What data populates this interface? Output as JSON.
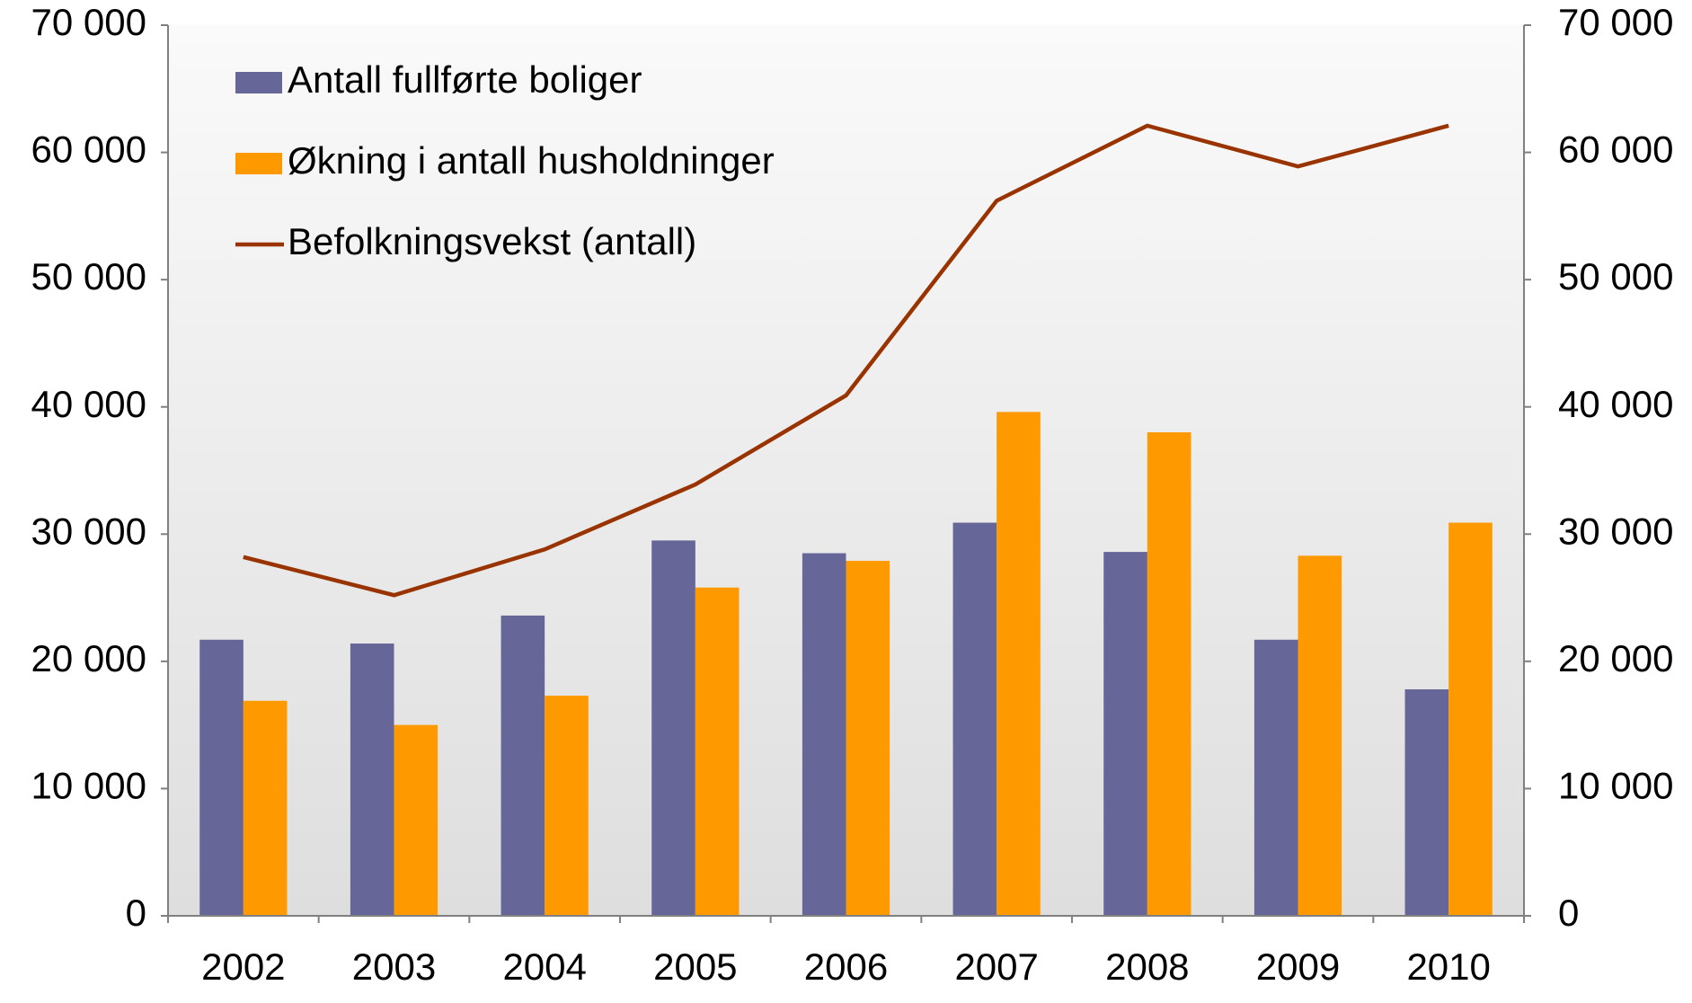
{
  "chart_data": {
    "type": "bar_line",
    "categories": [
      "2002",
      "2003",
      "2004",
      "2005",
      "2006",
      "2007",
      "2008",
      "2009",
      "2010"
    ],
    "series": [
      {
        "name": "Antall fullførte boliger",
        "type": "bar",
        "color": "#666699",
        "values": [
          21700,
          21400,
          23600,
          29500,
          28500,
          30900,
          28600,
          21700,
          17800
        ]
      },
      {
        "name": "Økning i antall husholdninger",
        "type": "bar",
        "color": "#ff9900",
        "values": [
          16900,
          15000,
          17300,
          25800,
          27900,
          39600,
          38000,
          28300,
          30900
        ]
      },
      {
        "name": "Befolkningsvekst (antall)",
        "type": "line",
        "color": "#993300",
        "values": [
          28200,
          25200,
          28800,
          33900,
          40900,
          56200,
          62100,
          58900,
          62100
        ]
      }
    ],
    "ylim": [
      0,
      70000
    ],
    "yticks": [
      0,
      {
        "value": 10000,
        "label": "10 000"
      },
      {
        "value": 20000,
        "label": "20 000"
      },
      {
        "value": 30000,
        "label": "30 000"
      },
      {
        "value": 40000,
        "label": "40 000"
      },
      {
        "value": 50000,
        "label": "50 000"
      },
      {
        "value": 60000,
        "label": "60 000"
      },
      {
        "value": 70000,
        "label": "70 000"
      }
    ],
    "y2lim": [
      0,
      70000
    ],
    "y2ticks": [
      0,
      {
        "value": 10000,
        "label": "10 000"
      },
      {
        "value": 20000,
        "label": "20 000"
      },
      {
        "value": 30000,
        "label": "30 000"
      },
      {
        "value": 40000,
        "label": "40 000"
      },
      {
        "value": 50000,
        "label": "50 000"
      },
      {
        "value": 60000,
        "label": "60 000"
      },
      {
        "value": 70000,
        "label": "70 000"
      }
    ],
    "legend": "top-left"
  }
}
